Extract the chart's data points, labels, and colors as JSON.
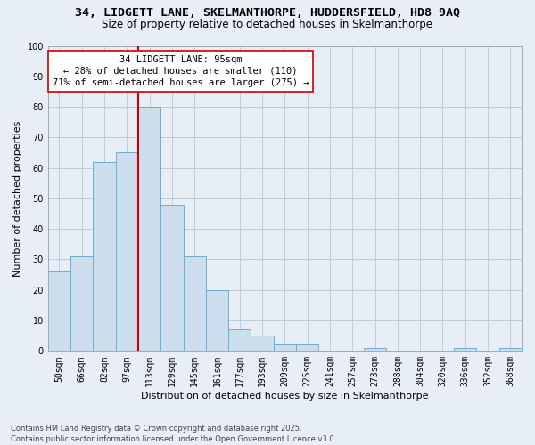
{
  "title_line1": "34, LIDGETT LANE, SKELMANTHORPE, HUDDERSFIELD, HD8 9AQ",
  "title_line2": "Size of property relative to detached houses in Skelmanthorpe",
  "xlabel": "Distribution of detached houses by size in Skelmanthorpe",
  "ylabel": "Number of detached properties",
  "categories": [
    "50sqm",
    "66sqm",
    "82sqm",
    "97sqm",
    "113sqm",
    "129sqm",
    "145sqm",
    "161sqm",
    "177sqm",
    "193sqm",
    "209sqm",
    "225sqm",
    "241sqm",
    "257sqm",
    "273sqm",
    "288sqm",
    "304sqm",
    "320sqm",
    "336sqm",
    "352sqm",
    "368sqm"
  ],
  "values": [
    26,
    31,
    62,
    65,
    80,
    48,
    31,
    20,
    7,
    5,
    2,
    2,
    0,
    0,
    1,
    0,
    0,
    0,
    1,
    0,
    1
  ],
  "bar_color": "#ccdded",
  "bar_edge_color": "#6aaed6",
  "vline_pos": 3.5,
  "vline_color": "#cc0000",
  "annotation_line1": "34 LIDGETT LANE: 95sqm",
  "annotation_line2": "← 28% of detached houses are smaller (110)",
  "annotation_line3": "71% of semi-detached houses are larger (275) →",
  "annotation_box_color": "#ffffff",
  "annotation_box_edge": "#cc0000",
  "ylim": [
    0,
    100
  ],
  "yticks": [
    0,
    10,
    20,
    30,
    40,
    50,
    60,
    70,
    80,
    90,
    100
  ],
  "grid_color": "#c0cad8",
  "bg_color": "#e8eef6",
  "footer": "Contains HM Land Registry data © Crown copyright and database right 2025.\nContains public sector information licensed under the Open Government Licence v3.0.",
  "title_fontsize": 9.5,
  "subtitle_fontsize": 8.5,
  "axis_label_fontsize": 8,
  "tick_fontsize": 7,
  "annotation_fontsize": 7.5,
  "footer_fontsize": 6
}
